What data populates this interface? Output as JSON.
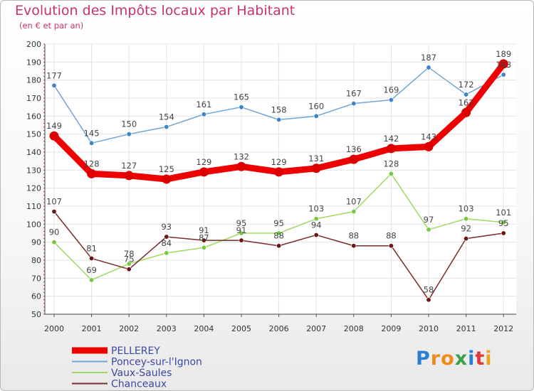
{
  "chart_data": {
    "type": "line",
    "title": "Evolution des Impôts locaux par Habitant",
    "subtitle": "(en € et par an)",
    "xlabel": "",
    "ylabel": "",
    "ylim": [
      50,
      200
    ],
    "yticks": [
      50,
      60,
      70,
      80,
      90,
      100,
      110,
      120,
      130,
      140,
      150,
      160,
      170,
      180,
      190,
      200
    ],
    "categories": [
      "2000",
      "2001",
      "2002",
      "2003",
      "2004",
      "2005",
      "2006",
      "2007",
      "2008",
      "2009",
      "2010",
      "2011",
      "2012"
    ],
    "grid": true,
    "legend_position": "bottom-left",
    "series": [
      {
        "name": "PELLEREY",
        "color": "#ee0000",
        "marker": "#dd0000",
        "bold": true,
        "values": [
          149,
          128,
          127,
          125,
          129,
          132,
          129,
          131,
          136,
          142,
          143,
          162,
          189
        ]
      },
      {
        "name": "Poncey-sur-l'Ignon",
        "color": "#6ea5d8",
        "marker": "#3d84c6",
        "bold": false,
        "values": [
          177,
          145,
          150,
          154,
          161,
          165,
          158,
          160,
          167,
          169,
          187,
          172,
          183
        ]
      },
      {
        "name": "Vaux-Saules",
        "color": "#9ed964",
        "marker": "#77c83c",
        "bold": false,
        "values": [
          90,
          69,
          78,
          84,
          87,
          95,
          95,
          103,
          107,
          128,
          97,
          103,
          101
        ]
      },
      {
        "name": "Chanceaux",
        "color": "#7a2a2a",
        "marker": "#6a1414",
        "bold": false,
        "values": [
          107,
          81,
          75,
          93,
          91,
          91,
          88,
          94,
          88,
          88,
          58,
          92,
          95
        ]
      }
    ]
  },
  "logo": {
    "text": "Proxiti",
    "letters": [
      "P",
      "r",
      "o",
      "x",
      "i",
      "t",
      "i"
    ],
    "colors": [
      "#2b7fd0",
      "#f08a1c",
      "#f08a1c",
      "#3aa34a",
      "#2b7fd0",
      "#e23a3a",
      "#f0a21c"
    ]
  }
}
